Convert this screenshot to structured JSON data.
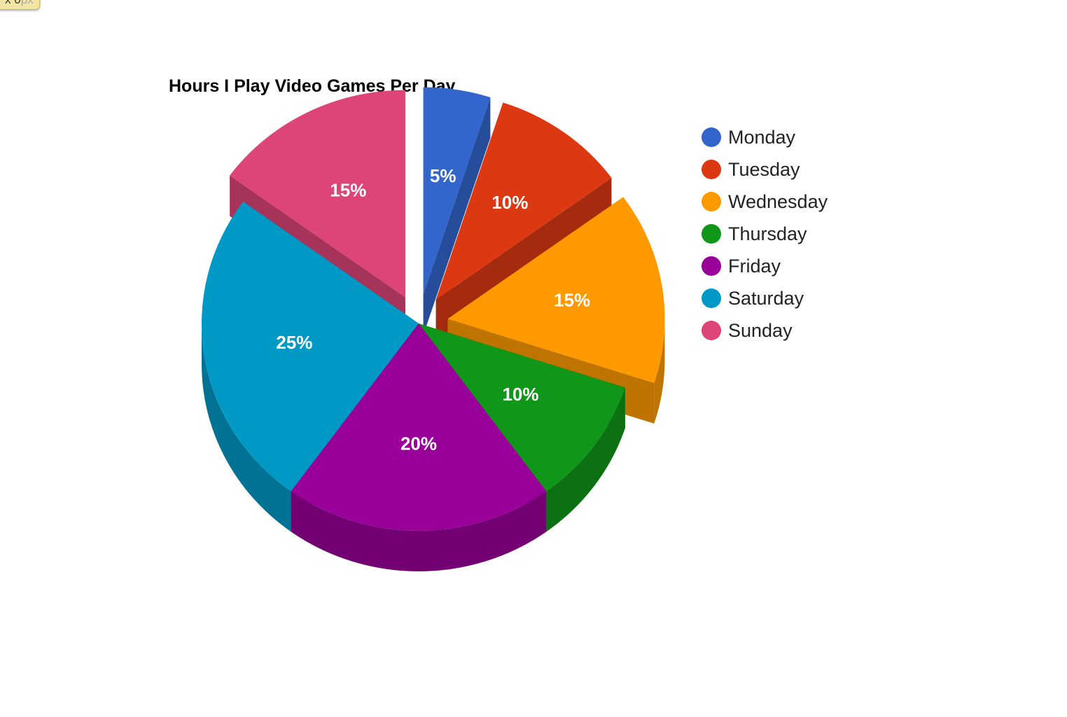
{
  "corner_tag": {
    "main": "x 0",
    "suffix": "px"
  },
  "chart_data": {
    "type": "pie",
    "style": "3d-exploded",
    "title": "Hours I Play Video Games Per Day",
    "legend_position": "right",
    "categories": [
      "Monday",
      "Tuesday",
      "Wednesday",
      "Thursday",
      "Friday",
      "Saturday",
      "Sunday"
    ],
    "values": [
      5,
      10,
      15,
      10,
      20,
      25,
      15
    ],
    "labels": [
      "5%",
      "10%",
      "15%",
      "10%",
      "20%",
      "25%",
      "15%"
    ],
    "colors": [
      "#3366cc",
      "#dc3912",
      "#ff9900",
      "#109618",
      "#990099",
      "#0099c6",
      "#dd4477"
    ],
    "exploded": [
      true,
      true,
      true,
      false,
      false,
      false,
      true
    ]
  }
}
